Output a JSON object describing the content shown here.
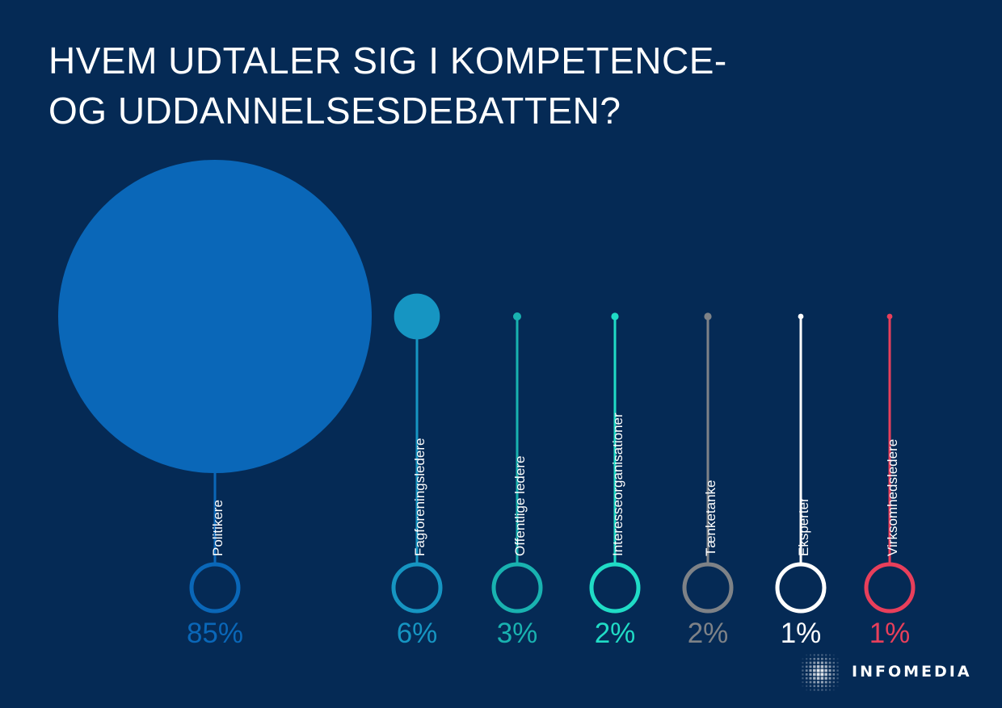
{
  "title": {
    "line1": "HVEM UDTALER SIG I KOMPETENCE-",
    "line2": "OG UDDANNELSESDEBATTEN?"
  },
  "brand": {
    "name": "INFOMEDIA"
  },
  "colors": {
    "background": "#052a55",
    "politikere": "#0a67b8",
    "fagforeningsledere": "#1695c2",
    "offentlige_ledere": "#19b2b0",
    "interesseorganisationer": "#20dcc6",
    "taenketanke": "#7e8287",
    "eksperter": "#ffffff",
    "virksomhedsledere": "#e83f5b"
  },
  "chart_data": {
    "type": "bubble",
    "title": "HVEM UDTALER SIG I KOMPETENCE- OG UDDANNELSESDEBATTEN?",
    "unit": "%",
    "categories": [
      "Politikere",
      "Fagforeningsledere",
      "Offentlige ledere",
      "Interesseorganisationer",
      "Tænketanke",
      "Eksperter",
      "Virksomhedsledere"
    ],
    "values": [
      85,
      6,
      3,
      2,
      2,
      1,
      1
    ],
    "value_labels": [
      "85%",
      "6%",
      "3%",
      "2%",
      "2%",
      "1%",
      "1%"
    ],
    "series_colors": [
      "#0a67b8",
      "#1695c2",
      "#19b2b0",
      "#20dcc6",
      "#7e8287",
      "#ffffff",
      "#e83f5b"
    ]
  }
}
